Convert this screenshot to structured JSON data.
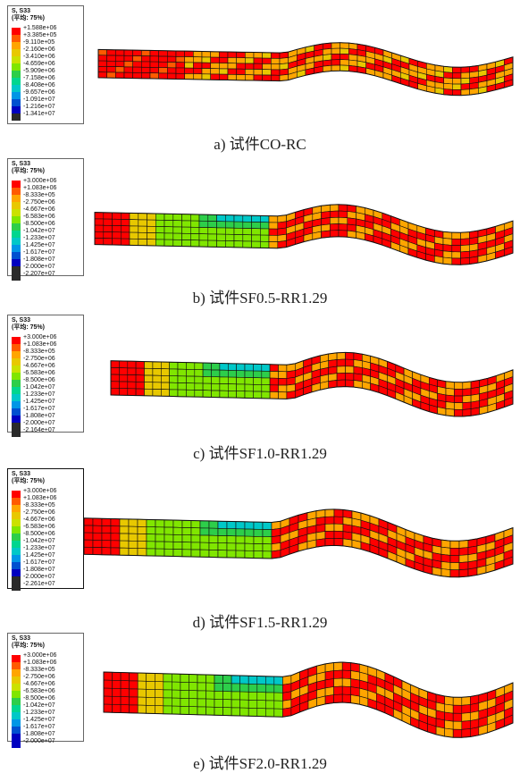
{
  "legend_header": [
    "S, S33",
    "(平均: 75%)"
  ],
  "colors": [
    "#ff0000",
    "#ff5a00",
    "#ffa500",
    "#e8c800",
    "#cbe100",
    "#80e600",
    "#2dce4a",
    "#00d68f",
    "#00c8c8",
    "#0096e6",
    "#0050d0",
    "#0000c0",
    "#2a2a2a"
  ],
  "panels": [
    {
      "caption": "a) 试件CO-RC",
      "values": [
        "+1.588e+06",
        "+3.385e+05",
        "-9.110e+05",
        "-2.160e+06",
        "-3.410e+06",
        "-4.659e+06",
        "-5.909e+06",
        "-7.158e+06",
        "-8.408e+06",
        "-9.657e+06",
        "-1.091e+07",
        "-1.216e+07",
        "-1.341e+07"
      ]
    },
    {
      "caption": "b) 试件SF0.5-RR1.29",
      "values": [
        "+3.000e+06",
        "+1.083e+06",
        "-8.333e+05",
        "-2.750e+06",
        "-4.667e+06",
        "-6.583e+06",
        "-8.500e+06",
        "-1.042e+07",
        "-1.233e+07",
        "-1.425e+07",
        "-1.617e+07",
        "-1.808e+07",
        "-2.000e+07",
        "-2.207e+07"
      ]
    },
    {
      "caption": "c) 试件SF1.0-RR1.29",
      "values": [
        "+3.000e+06",
        "+1.083e+06",
        "-8.333e+05",
        "-2.750e+06",
        "-4.667e+06",
        "-6.583e+06",
        "-8.500e+06",
        "-1.042e+07",
        "-1.233e+07",
        "-1.425e+07",
        "-1.617e+07",
        "-1.808e+07",
        "-2.000e+07",
        "-2.164e+07"
      ]
    },
    {
      "caption": "d) 试件SF1.5-RR1.29",
      "values": [
        "+3.000e+06",
        "+1.083e+06",
        "-8.333e+05",
        "-2.750e+06",
        "-4.667e+06",
        "-6.583e+06",
        "-8.500e+06",
        "-1.042e+07",
        "-1.233e+07",
        "-1.425e+07",
        "-1.617e+07",
        "-1.808e+07",
        "-2.000e+07",
        "-2.261e+07"
      ]
    },
    {
      "caption": "e) 试件SF2.0-RR1.29",
      "values": [
        "+3.000e+06",
        "+1.083e+06",
        "-8.333e+05",
        "-2.750e+06",
        "-4.667e+06",
        "-6.583e+06",
        "-8.500e+06",
        "-1.042e+07",
        "-1.233e+07",
        "-1.425e+07",
        "-1.617e+07",
        "-1.808e+07",
        "-2.000e+07"
      ]
    }
  ]
}
